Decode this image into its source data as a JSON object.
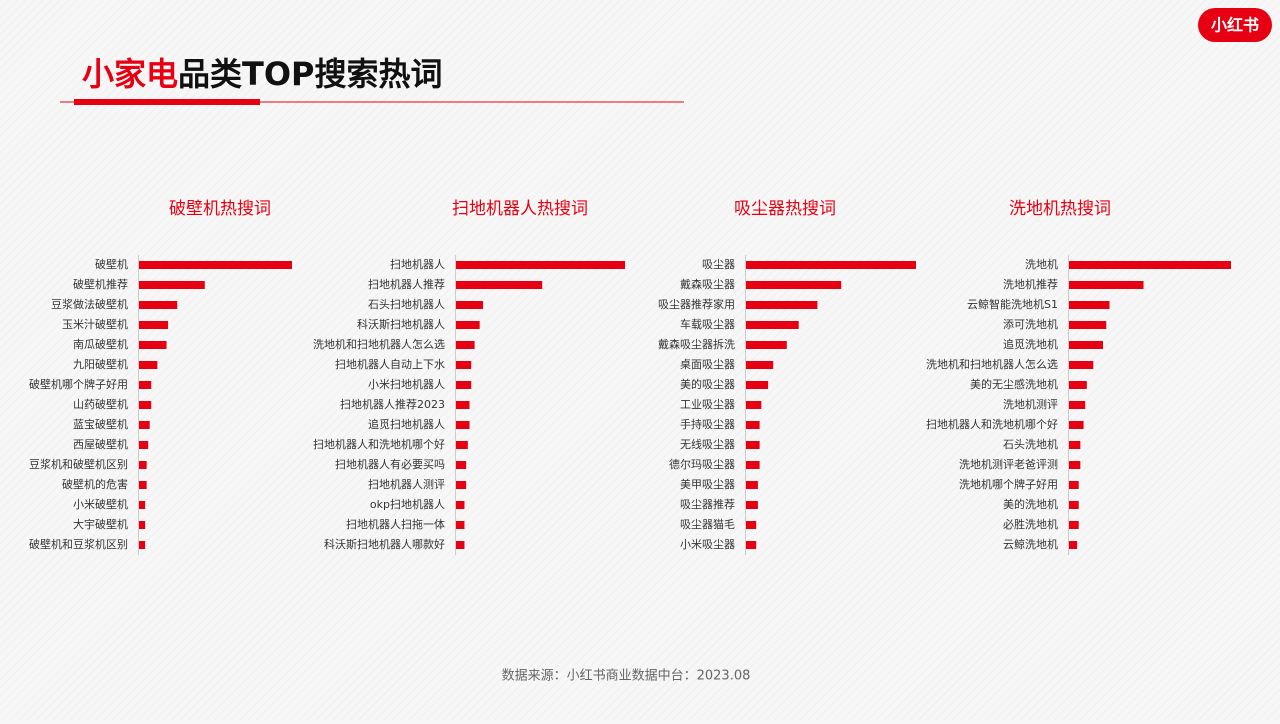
{
  "header": {
    "title_highlight": "小家电",
    "title": "品类TOP搜索热词",
    "logo": "小红书"
  },
  "chart_data": [
    {
      "type": "bar",
      "orientation": "horizontal",
      "title": "破壁机热搜词",
      "color": "#e60012",
      "xlim": [
        0,
        100
      ],
      "categories": [
        "破壁机",
        "破壁机推荐",
        "豆浆做法破壁机",
        "玉米汁破壁机",
        "南瓜破壁机",
        "九阳破壁机",
        "破壁机哪个牌子好用",
        "山药破壁机",
        "蓝宝破壁机",
        "西屋破壁机",
        "豆浆机和破壁机区别",
        "破壁机的危害",
        "小米破壁机",
        "大宇破壁机",
        "破壁机和豆浆机区别"
      ],
      "values": [
        100,
        43,
        25,
        19,
        18,
        12,
        8,
        8,
        7,
        6,
        5,
        5,
        4,
        4,
        4
      ]
    },
    {
      "type": "bar",
      "orientation": "horizontal",
      "title": "扫地机器人热搜词",
      "color": "#e60012",
      "xlim": [
        0,
        100
      ],
      "categories": [
        "扫地机器人",
        "扫地机器人推荐",
        "石头扫地机器人",
        "科沃斯扫地机器人",
        "洗地机和扫地机器人怎么选",
        "扫地机器人自动上下水",
        "小米扫地机器人",
        "扫地机器人推荐2023",
        "追觅扫地机器人",
        "扫地机器人和洗地机哪个好",
        "扫地机器人有必要买吗",
        "扫地机器人测评",
        "okp扫地机器人",
        "扫地机器人扫拖一体",
        "科沃斯扫地机器人哪款好"
      ],
      "values": [
        100,
        51,
        16,
        14,
        11,
        9,
        9,
        8,
        8,
        7,
        6,
        6,
        5,
        5,
        5
      ]
    },
    {
      "type": "bar",
      "orientation": "horizontal",
      "title": "吸尘器热搜词",
      "color": "#e60012",
      "xlim": [
        0,
        100
      ],
      "categories": [
        "吸尘器",
        "戴森吸尘器",
        "吸尘器推荐家用",
        "车载吸尘器",
        "戴森吸尘器拆洗",
        "桌面吸尘器",
        "美的吸尘器",
        "工业吸尘器",
        "手持吸尘器",
        "无线吸尘器",
        "德尔玛吸尘器",
        "美甲吸尘器",
        "吸尘器推荐",
        "吸尘器猫毛",
        "小米吸尘器"
      ],
      "values": [
        100,
        56,
        42,
        31,
        24,
        16,
        13,
        9,
        8,
        8,
        8,
        7,
        7,
        6,
        6
      ]
    },
    {
      "type": "bar",
      "orientation": "horizontal",
      "title": "洗地机热搜词",
      "color": "#e60012",
      "xlim": [
        0,
        100
      ],
      "categories": [
        "洗地机",
        "洗地机推荐",
        "云鲸智能洗地机S1",
        "添可洗地机",
        "追觅洗地机",
        "洗地机和扫地机器人怎么选",
        "美的无尘感洗地机",
        "洗地机测评",
        "扫地机器人和洗地机哪个好",
        "石头洗地机",
        "洗地机测评老爸评测",
        "洗地机哪个牌子好用",
        "美的洗地机",
        "必胜洗地机",
        "云鲸洗地机"
      ],
      "values": [
        100,
        46,
        25,
        23,
        21,
        15,
        11,
        10,
        9,
        7,
        7,
        6,
        6,
        6,
        5
      ]
    }
  ],
  "footer": {
    "source": "数据来源：小红书商业数据中台：2023.08"
  }
}
